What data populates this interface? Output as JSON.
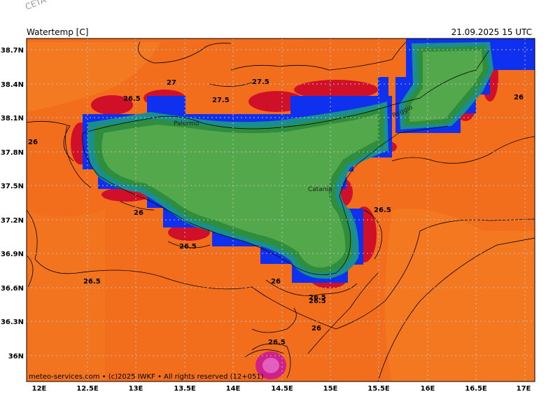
{
  "watermark": "CETA - Ins",
  "header": {
    "variable": "Watertemp [C]",
    "valid_time": "21.09.2025 15 UTC"
  },
  "credit": "meteo-services.com • (c)2025 IWKF • All rights reserved (12+051)",
  "axes": {
    "lat_labels": [
      "38.7N",
      "38.4N",
      "38.1N",
      "37.8N",
      "37.5N",
      "37.2N",
      "36.9N",
      "36.6N",
      "36.3N",
      "36N"
    ],
    "lon_labels": [
      "12E",
      "12.5E",
      "13E",
      "13.5E",
      "14E",
      "14.5E",
      "15E",
      "15.5E",
      "16E",
      "16.5E",
      "17E"
    ]
  },
  "cities": [
    {
      "name": "Palermo"
    },
    {
      "name": "Catania"
    },
    {
      "name": "Reggio"
    }
  ],
  "contour_labels": [
    "26",
    "26.5",
    "27",
    "27.5",
    "27.5",
    "26.5",
    "26",
    "26.5",
    "26.5",
    "26.5",
    "26",
    "26.5",
    "26",
    "26.5",
    "26"
  ],
  "colors": {
    "sea_warm": "#f26e1c",
    "sea_cooler": "#fa8c2a",
    "land": "#52a84a",
    "land_edge": "#2f8e3d",
    "teal": "#1a8e8e",
    "blue": "#1030f0",
    "red": "#d01028",
    "magenta": "#c02080"
  }
}
